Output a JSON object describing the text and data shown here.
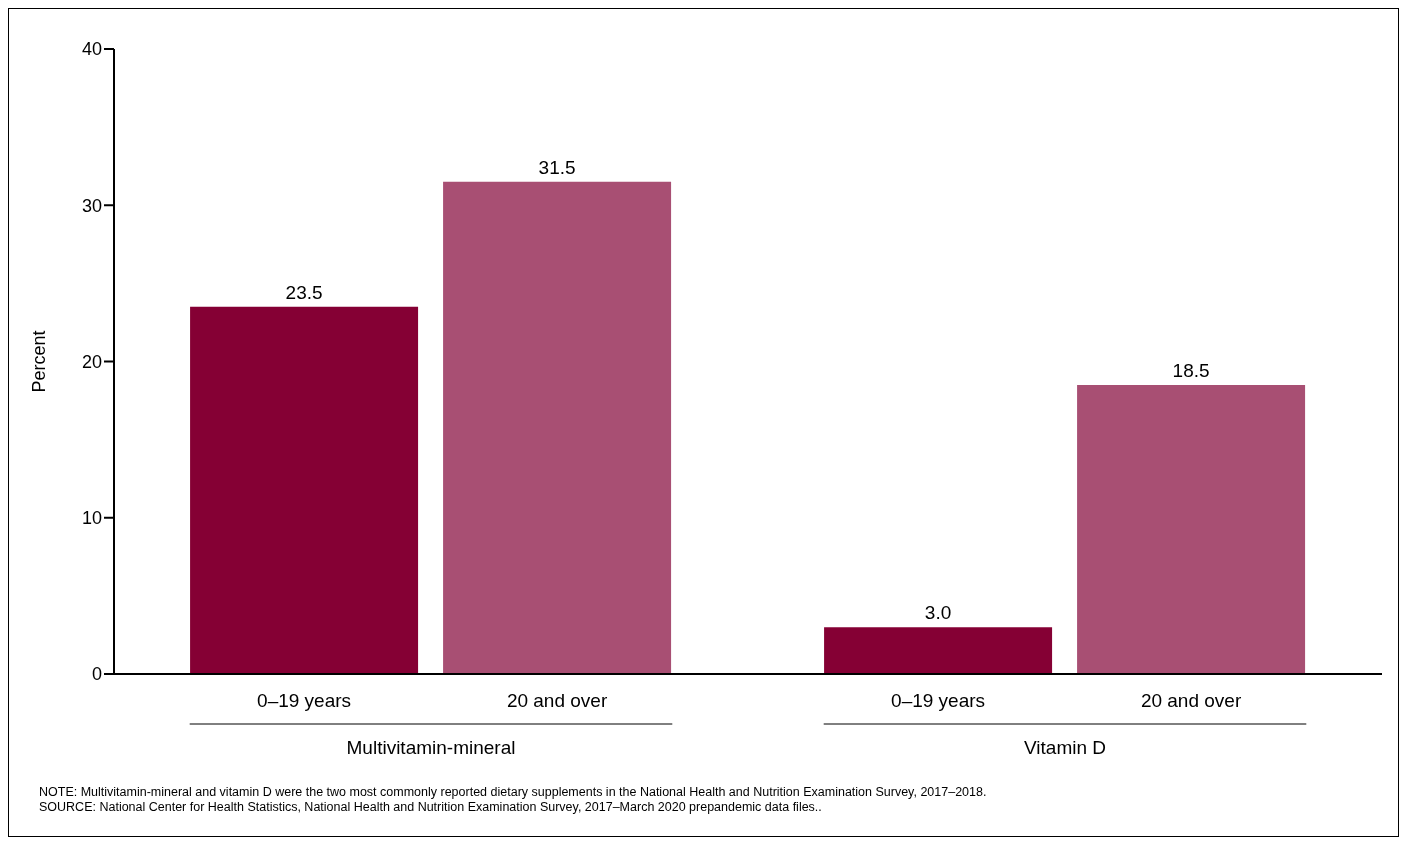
{
  "chart_data": {
    "type": "bar",
    "categories": [
      "Multivitamin-mineral",
      "Vitamin D"
    ],
    "series": [
      {
        "name": "0–19 years",
        "color": "#850034",
        "values": [
          23.5,
          3.0
        ],
        "value_labels": [
          "23.5",
          "3.0"
        ]
      },
      {
        "name": "20 and over",
        "color": "#a84f73",
        "values": [
          31.5,
          18.5
        ],
        "value_labels": [
          "31.5",
          "18.5"
        ]
      }
    ],
    "ylabel": "Percent",
    "ylim": [
      0,
      40
    ],
    "yticks": [
      0,
      10,
      20,
      30,
      40
    ],
    "grid": false,
    "legend": false,
    "annotations": [
      "NOTE: Multivitamin-mineral and vitamin D were the two most commonly reported dietary supplements in the National Health and Nutrition Examination Survey, 2017–2018.",
      "SOURCE: National Center for Health Statistics, National Health and Nutrition Examination Survey, 2017–March 2020 prepandemic data files.."
    ]
  }
}
